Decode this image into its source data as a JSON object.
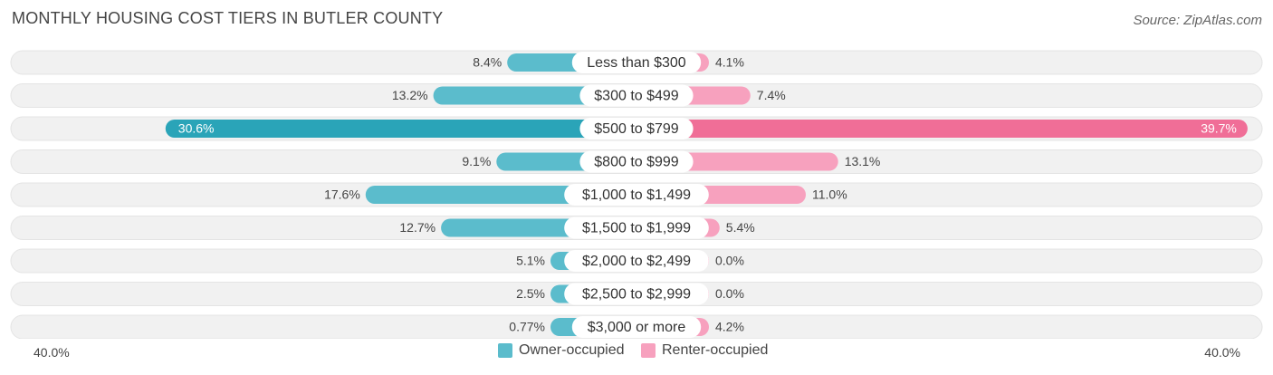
{
  "header": {
    "title": "MONTHLY HOUSING COST TIERS IN BUTLER COUNTY",
    "source": "Source: ZipAtlas.com"
  },
  "colors": {
    "owner": "#5bbccc",
    "owner_dark": "#2aa4b8",
    "renter": "#f7a1be",
    "renter_dark": "#f06e97",
    "track": "#f1f1f1"
  },
  "axis": {
    "left_label": "40.0%",
    "right_label": "40.0%"
  },
  "chart_data": {
    "type": "bar",
    "title": "MONTHLY HOUSING COST TIERS IN BUTLER COUNTY",
    "orientation": "horizontal-diverging",
    "xlim": [
      -40,
      40
    ],
    "categories": [
      "Less than $300",
      "$300 to $499",
      "$500 to $799",
      "$800 to $999",
      "$1,000 to $1,499",
      "$1,500 to $1,999",
      "$2,000 to $2,499",
      "$2,500 to $2,999",
      "$3,000 or more"
    ],
    "series": [
      {
        "name": "Owner-occupied",
        "values": [
          8.4,
          13.2,
          30.6,
          9.1,
          17.6,
          12.7,
          5.1,
          2.5,
          0.77
        ],
        "labels": [
          "8.4%",
          "13.2%",
          "30.6%",
          "9.1%",
          "17.6%",
          "12.7%",
          "5.1%",
          "2.5%",
          "0.77%"
        ]
      },
      {
        "name": "Renter-occupied",
        "values": [
          4.1,
          7.4,
          39.7,
          13.1,
          11.0,
          5.4,
          0.0,
          0.0,
          4.2
        ],
        "labels": [
          "4.1%",
          "7.4%",
          "39.7%",
          "13.1%",
          "11.0%",
          "5.4%",
          "0.0%",
          "0.0%",
          "4.2%"
        ]
      }
    ],
    "legend": [
      "Owner-occupied",
      "Renter-occupied"
    ],
    "legend_position": "bottom-center"
  }
}
